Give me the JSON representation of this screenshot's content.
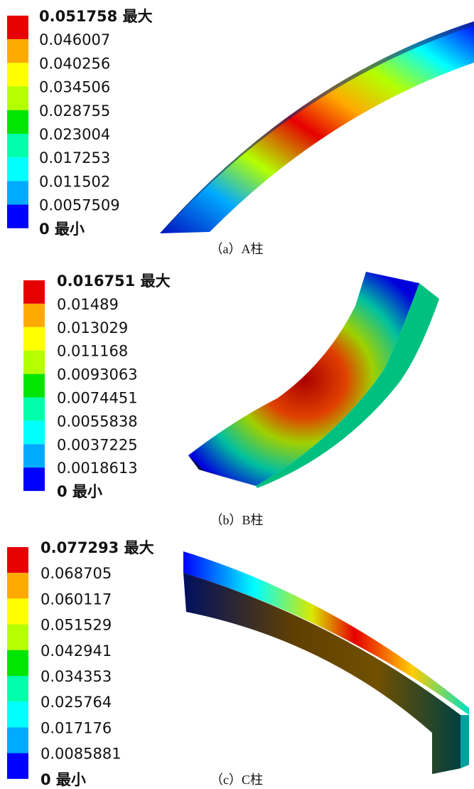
{
  "panels": [
    {
      "legend": [
        "0.051758 最大",
        "0.046007",
        "0.040256",
        "0.034506",
        "0.028755",
        "0.023004",
        "0.017253",
        "0.011502",
        "0.0057509",
        "0 最小"
      ],
      "caption": "（a）A柱"
    },
    {
      "legend": [
        "0.016751 最大",
        "0.01489",
        "0.013029",
        "0.011168",
        "0.0093063",
        "0.0074451",
        "0.0055838",
        "0.0037225",
        "0.0018613",
        "0 最小"
      ],
      "caption": "（b）B柱"
    },
    {
      "legend": [
        "0.077293 最大",
        "0.068705",
        "0.060117",
        "0.051529",
        "0.042941",
        "0.034353",
        "0.025764",
        "0.017176",
        "0.0085881",
        "0 最小"
      ],
      "caption": "（c）C柱"
    }
  ],
  "legend_colors": [
    "#e60000",
    "#ffaa00",
    "#ffff00",
    "#b4ff00",
    "#00e600",
    "#00ffaa",
    "#00ffff",
    "#00aaff",
    "#0000ff"
  ]
}
